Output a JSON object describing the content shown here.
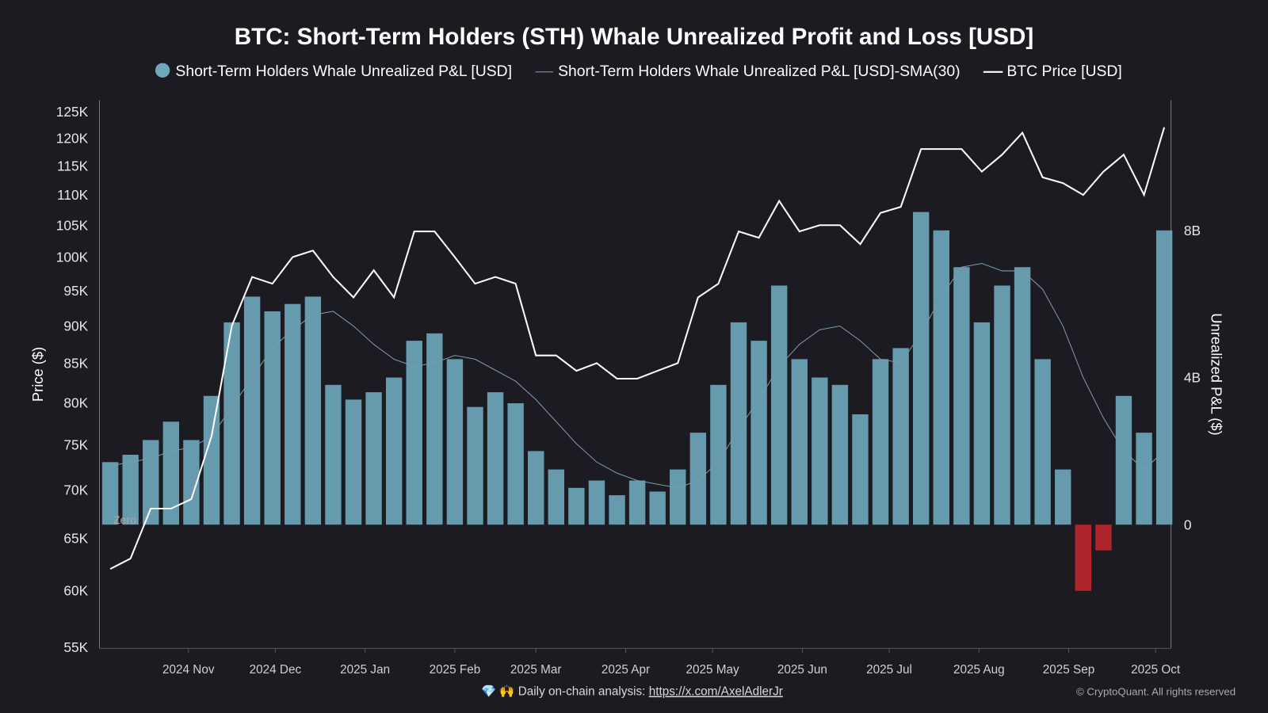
{
  "chart_data": {
    "type": "bar+line",
    "title": "BTC: Short-Term Holders (STH) Whale Unrealized Profit and Loss [USD]",
    "legend": [
      {
        "name": "Short-Term Holders Whale Unrealized P&L [USD]",
        "color": "#6fa8bd",
        "marker": "dot"
      },
      {
        "name": "Short-Term Holders Whale Unrealized P&L [USD]-SMA(30)",
        "color": "#7f9aa6",
        "marker": "thin-line"
      },
      {
        "name": "BTC Price [USD]",
        "color": "#ffffff",
        "marker": "line"
      }
    ],
    "legend_position": "top",
    "y_left": {
      "label": "Price ($)",
      "scale": "log",
      "range": [
        55000,
        125000
      ],
      "ticks": [
        "125K",
        "120K",
        "115K",
        "110K",
        "105K",
        "100K",
        "95K",
        "90K",
        "85K",
        "80K",
        "75K",
        "70K",
        "65K",
        "60K",
        "55K"
      ],
      "tick_values": [
        125000,
        120000,
        115000,
        110000,
        105000,
        100000,
        95000,
        90000,
        85000,
        80000,
        75000,
        70000,
        65000,
        60000,
        55000
      ]
    },
    "y_right": {
      "label": "Unrealized P&L ($)",
      "range_billions": [
        -3.4,
        11.5
      ],
      "ticks": [
        "8B",
        "4B",
        "0"
      ],
      "tick_values": [
        8,
        4,
        0
      ]
    },
    "x_ticks": [
      "2024 Nov",
      "2024 Dec",
      "2025 Jan",
      "2025 Feb",
      "2025 Mar",
      "2025 Apr",
      "2025 May",
      "2025 Jun",
      "2025 Jul",
      "2025 Aug",
      "2025 Sep",
      "2025 Oct"
    ],
    "x_tick_dates": [
      "2024-11-01",
      "2024-12-01",
      "2025-01-01",
      "2025-02-01",
      "2025-03-01",
      "2025-04-01",
      "2025-05-01",
      "2025-06-01",
      "2025-07-01",
      "2025-08-01",
      "2025-09-01",
      "2025-10-01"
    ],
    "zero_label": "Zero",
    "dates": [
      "2024-10-05",
      "2024-10-12",
      "2024-10-19",
      "2024-10-26",
      "2024-11-02",
      "2024-11-09",
      "2024-11-16",
      "2024-11-23",
      "2024-11-30",
      "2024-12-07",
      "2024-12-14",
      "2024-12-21",
      "2024-12-28",
      "2025-01-04",
      "2025-01-11",
      "2025-01-18",
      "2025-01-25",
      "2025-02-01",
      "2025-02-08",
      "2025-02-15",
      "2025-02-22",
      "2025-03-01",
      "2025-03-08",
      "2025-03-15",
      "2025-03-22",
      "2025-03-29",
      "2025-04-05",
      "2025-04-12",
      "2025-04-19",
      "2025-04-26",
      "2025-05-03",
      "2025-05-10",
      "2025-05-17",
      "2025-05-24",
      "2025-05-31",
      "2025-06-07",
      "2025-06-14",
      "2025-06-21",
      "2025-06-28",
      "2025-07-05",
      "2025-07-12",
      "2025-07-19",
      "2025-07-26",
      "2025-08-02",
      "2025-08-09",
      "2025-08-16",
      "2025-08-23",
      "2025-08-30",
      "2025-09-06",
      "2025-09-13",
      "2025-09-20",
      "2025-09-27",
      "2025-10-04"
    ],
    "btc_price": [
      62000,
      63000,
      68000,
      68000,
      69000,
      76000,
      90000,
      97000,
      96000,
      100000,
      101000,
      97000,
      94000,
      98000,
      94000,
      104000,
      104000,
      100000,
      96000,
      97000,
      96000,
      86000,
      86000,
      84000,
      85000,
      83000,
      83000,
      84000,
      85000,
      94000,
      96000,
      104000,
      103000,
      109000,
      104000,
      105000,
      105000,
      102000,
      107000,
      108000,
      118000,
      118000,
      118000,
      114000,
      117000,
      121000,
      113000,
      112000,
      110000,
      114000,
      117000,
      110000,
      122000
    ],
    "pnl_billions": [
      1.7,
      1.9,
      2.3,
      2.8,
      2.3,
      3.5,
      5.5,
      6.2,
      5.8,
      6.0,
      6.2,
      3.8,
      3.4,
      3.6,
      4.0,
      5.0,
      5.2,
      4.5,
      3.2,
      3.6,
      3.3,
      2.0,
      1.5,
      1.0,
      1.2,
      0.8,
      1.2,
      0.9,
      1.5,
      2.5,
      3.8,
      5.5,
      5.0,
      6.5,
      4.5,
      4.0,
      3.8,
      3.0,
      4.5,
      4.8,
      8.5,
      8.0,
      7.0,
      5.5,
      6.5,
      7.0,
      4.5,
      1.5,
      -1.8,
      -0.7,
      3.5,
      2.5,
      8.0
    ],
    "pnl_sma30_billions": [
      1.6,
      1.7,
      1.8,
      2.0,
      2.1,
      2.4,
      3.2,
      4.0,
      4.8,
      5.3,
      5.7,
      5.8,
      5.4,
      4.9,
      4.5,
      4.3,
      4.4,
      4.6,
      4.5,
      4.2,
      3.9,
      3.4,
      2.8,
      2.2,
      1.7,
      1.4,
      1.2,
      1.1,
      1.0,
      1.2,
      1.7,
      2.6,
      3.4,
      4.3,
      4.9,
      5.3,
      5.4,
      5.0,
      4.5,
      4.4,
      5.2,
      6.2,
      7.0,
      7.1,
      6.9,
      6.9,
      6.4,
      5.4,
      4.0,
      2.9,
      2.0,
      1.5,
      2.0
    ]
  },
  "footer": {
    "analysis_prefix": "💎 🙌 Daily on-chain analysis: ",
    "analysis_link": "https://x.com/AxelAdlerJr",
    "copyright": "© CryptoQuant. All rights reserved"
  },
  "colors": {
    "background": "#1b1b21",
    "bar_positive": "#6fa8bd",
    "bar_negative": "#c0272d",
    "price": "#ffffff",
    "sma": "#7f9aa6"
  }
}
